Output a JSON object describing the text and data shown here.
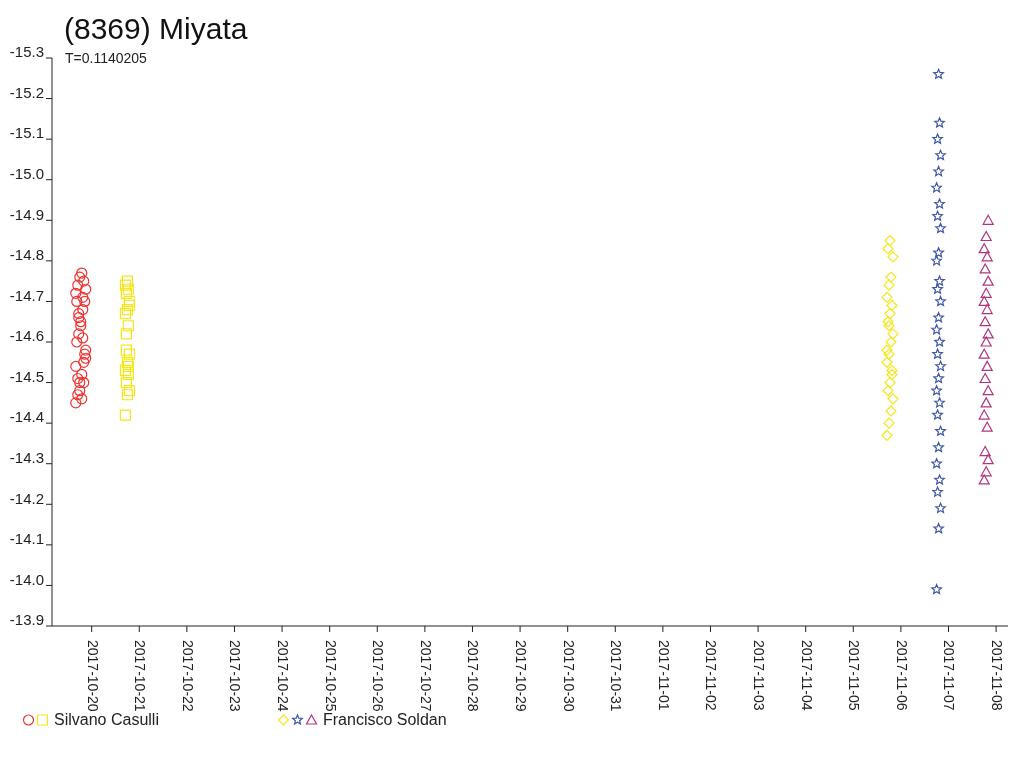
{
  "chart_data": {
    "type": "scatter",
    "title": "(8369) Miyata",
    "subtitle": "T=0.1140205",
    "xlim": [
      "2017-10-19T04:00",
      "2017-11-08T06:00"
    ],
    "xticks": [
      "2017-10-20",
      "2017-10-21",
      "2017-10-22",
      "2017-10-23",
      "2017-10-24",
      "2017-10-25",
      "2017-10-26",
      "2017-10-27",
      "2017-10-28",
      "2017-10-29",
      "2017-10-30",
      "2017-10-31",
      "2017-11-01",
      "2017-11-02",
      "2017-11-03",
      "2017-11-04",
      "2017-11-05",
      "2017-11-06",
      "2017-11-07",
      "2017-11-08"
    ],
    "ylim": [
      -13.9,
      -15.3
    ],
    "yticks": [
      -15.3,
      -15.2,
      -15.1,
      {
        "value": -15,
        "label": "-15.0"
      },
      -14.9,
      -14.8,
      -14.7,
      -14.6,
      -14.5,
      -14.4,
      -14.3,
      -14.2,
      -14.1,
      {
        "value": -14,
        "label": "-14.0"
      },
      -13.9
    ],
    "grid": false,
    "legend": "bottom",
    "series": [
      {
        "color": "#ee3333",
        "marker": "circle",
        "x": [
          "2017-10-19T16:00",
          "2017-10-19T17:00",
          "2017-10-19T18:00",
          "2017-10-19T19:00",
          "2017-10-19T20:00",
          "2017-10-19T21:00",
          "2017-10-19T16:30",
          "2017-10-19T17:30",
          "2017-10-19T18:30",
          "2017-10-19T19:30",
          "2017-10-19T20:30",
          "2017-10-19T16:00",
          "2017-10-19T17:00",
          "2017-10-19T18:00",
          "2017-10-19T19:00",
          "2017-10-19T20:00",
          "2017-10-19T21:00",
          "2017-10-19T16:30",
          "2017-10-19T17:30",
          "2017-10-19T18:30",
          "2017-10-19T19:30",
          "2017-10-19T20:30",
          "2017-10-19T16:00",
          "2017-10-19T17:00",
          "2017-10-19T18:00",
          "2017-10-19T19:00",
          "2017-10-19T20:00",
          "2017-10-19T21:00",
          "2017-10-19T17:30",
          "2017-10-19T19:30"
        ],
        "values": [
          -14.45,
          -14.47,
          -14.5,
          -14.52,
          -14.55,
          -14.58,
          -14.6,
          -14.62,
          -14.65,
          -14.68,
          -14.7,
          -14.72,
          -14.74,
          -14.76,
          -14.77,
          -14.75,
          -14.73,
          -14.7,
          -14.67,
          -14.64,
          -14.61,
          -14.57,
          -14.54,
          -14.51,
          -14.48,
          -14.46,
          -14.5,
          -14.56,
          -14.66,
          -14.71
        ]
      },
      {
        "name": "Silvano Casulli",
        "color": "#f5e616",
        "marker": "square",
        "x": [
          "2017-10-20T17:00",
          "2017-10-20T18:00",
          "2017-10-20T19:00",
          "2017-10-20T17:30",
          "2017-10-20T18:30",
          "2017-10-20T17:00",
          "2017-10-20T18:00",
          "2017-10-20T19:00",
          "2017-10-20T17:30",
          "2017-10-20T18:30",
          "2017-10-20T17:00",
          "2017-10-20T18:00",
          "2017-10-20T19:00",
          "2017-10-20T17:30",
          "2017-10-20T18:30",
          "2017-10-20T17:00",
          "2017-10-20T18:00",
          "2017-10-20T19:00",
          "2017-10-20T17:30",
          "2017-10-20T18:30"
        ],
        "values": [
          -14.42,
          -14.47,
          -14.48,
          -14.5,
          -14.52,
          -14.53,
          -14.55,
          -14.57,
          -14.58,
          -14.64,
          -14.67,
          -14.68,
          -14.7,
          -14.72,
          -14.73,
          -14.74,
          -14.75,
          -14.69,
          -14.62,
          -14.54
        ]
      },
      {
        "color": "#f5e616",
        "marker": "diamond",
        "x": [
          "2017-11-05T17:00",
          "2017-11-05T18:00",
          "2017-11-05T19:00",
          "2017-11-05T20:00",
          "2017-11-05T17:30",
          "2017-11-05T18:30",
          "2017-11-05T19:30",
          "2017-11-05T17:00",
          "2017-11-05T18:00",
          "2017-11-05T19:00",
          "2017-11-05T20:00",
          "2017-11-05T17:30",
          "2017-11-05T18:30",
          "2017-11-05T19:30",
          "2017-11-05T17:00",
          "2017-11-05T18:00",
          "2017-11-05T19:00",
          "2017-11-05T20:00",
          "2017-11-05T17:30",
          "2017-11-05T18:30",
          "2017-11-05T19:30",
          "2017-11-05T17:00",
          "2017-11-05T18:00"
        ],
        "values": [
          -14.37,
          -14.4,
          -14.43,
          -14.46,
          -14.48,
          -14.5,
          -14.53,
          -14.55,
          -14.57,
          -14.6,
          -14.62,
          -14.65,
          -14.67,
          -14.69,
          -14.71,
          -14.74,
          -14.76,
          -14.81,
          -14.83,
          -14.85,
          -14.52,
          -14.58,
          -14.64
        ]
      },
      {
        "color": "#3f57a3",
        "marker": "star",
        "x": [
          "2017-11-06T18:00",
          "2017-11-06T19:00",
          "2017-11-06T20:00",
          "2017-11-06T18:30",
          "2017-11-06T19:30",
          "2017-11-06T18:00",
          "2017-11-06T19:00",
          "2017-11-06T20:00",
          "2017-11-06T18:30",
          "2017-11-06T19:30",
          "2017-11-06T18:00",
          "2017-11-06T19:00",
          "2017-11-06T20:00",
          "2017-11-06T18:30",
          "2017-11-06T19:30",
          "2017-11-06T18:00",
          "2017-11-06T19:00",
          "2017-11-06T20:00",
          "2017-11-06T18:30",
          "2017-11-06T19:30",
          "2017-11-06T18:00",
          "2017-11-06T19:00",
          "2017-11-06T20:00",
          "2017-11-06T18:30",
          "2017-11-06T19:30",
          "2017-11-06T18:00",
          "2017-11-06T19:00",
          "2017-11-06T20:00",
          "2017-11-06T18:30",
          "2017-11-06T19:30",
          "2017-11-06T19:00"
        ],
        "values": [
          -13.99,
          -14.14,
          -14.19,
          -14.23,
          -14.26,
          -14.3,
          -14.34,
          -14.38,
          -14.42,
          -14.45,
          -14.48,
          -14.51,
          -14.54,
          -14.57,
          -14.6,
          -14.63,
          -14.66,
          -14.7,
          -14.73,
          -14.75,
          -14.8,
          -14.82,
          -14.88,
          -14.91,
          -14.94,
          -14.98,
          -15.02,
          -15.06,
          -15.1,
          -15.14,
          -15.26
        ]
      },
      {
        "name": "Francisco Soldan",
        "color": "#b03580",
        "marker": "triangle",
        "x": [
          "2017-11-07T18:00",
          "2017-11-07T19:00",
          "2017-11-07T20:00",
          "2017-11-07T18:30",
          "2017-11-07T19:30",
          "2017-11-07T18:00",
          "2017-11-07T19:00",
          "2017-11-07T20:00",
          "2017-11-07T18:30",
          "2017-11-07T19:30",
          "2017-11-07T18:00",
          "2017-11-07T19:00",
          "2017-11-07T20:00",
          "2017-11-07T18:30",
          "2017-11-07T19:30",
          "2017-11-07T18:00",
          "2017-11-07T19:00",
          "2017-11-07T20:00",
          "2017-11-07T18:30",
          "2017-11-07T19:30",
          "2017-11-07T18:00",
          "2017-11-07T19:00",
          "2017-11-07T20:00"
        ],
        "values": [
          -14.26,
          -14.28,
          -14.31,
          -14.33,
          -14.39,
          -14.42,
          -14.45,
          -14.48,
          -14.51,
          -14.54,
          -14.57,
          -14.6,
          -14.62,
          -14.65,
          -14.68,
          -14.7,
          -14.72,
          -14.75,
          -14.78,
          -14.81,
          -14.83,
          -14.86,
          -14.9
        ]
      }
    ]
  }
}
